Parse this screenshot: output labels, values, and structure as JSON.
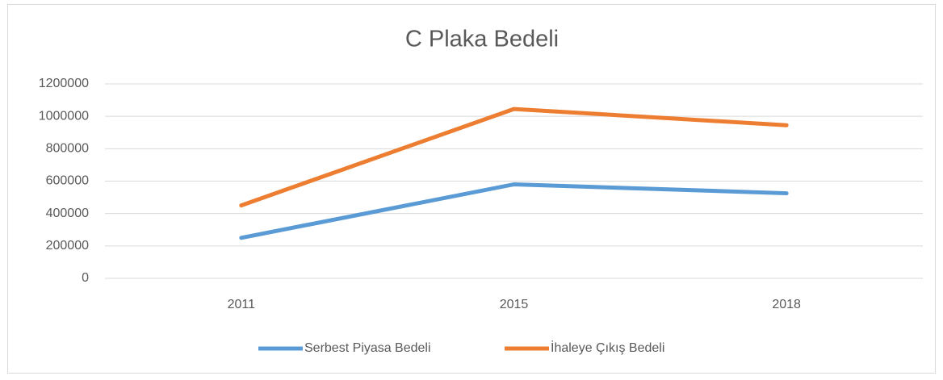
{
  "chart_data": {
    "type": "line",
    "title": "C Plaka Bedeli",
    "categories": [
      "2011",
      "2015",
      "2018"
    ],
    "series": [
      {
        "name": "Serbest Piyasa Bedeli",
        "color": "#5b9bd5",
        "values": [
          250000,
          580000,
          525000
        ]
      },
      {
        "name": "İhaleye Çıkış Bedeli",
        "color": "#ed7d31",
        "values": [
          450000,
          1045000,
          945000
        ]
      }
    ],
    "ylim": [
      0,
      1200000
    ],
    "yticks": [
      0,
      200000,
      400000,
      600000,
      800000,
      1000000,
      1200000
    ],
    "grid": true,
    "legend": "bottom"
  }
}
